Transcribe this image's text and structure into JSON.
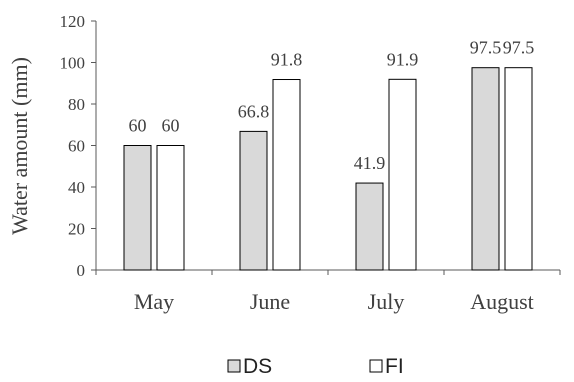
{
  "chart_data": {
    "type": "bar",
    "title": "",
    "xlabel": "",
    "ylabel": "Water amount (mm)",
    "ylim": [
      0,
      120
    ],
    "yticks": [
      0,
      20,
      40,
      60,
      80,
      100,
      120
    ],
    "grid": false,
    "legend_position": "bottom",
    "categories": [
      "May",
      "June",
      "July",
      "August"
    ],
    "series": [
      {
        "name": "DS",
        "values": [
          60,
          66.8,
          41.9,
          97.5
        ],
        "color": "#d9d9d9"
      },
      {
        "name": "FI",
        "values": [
          60,
          91.8,
          91.9,
          97.5
        ],
        "color": "#ffffff"
      }
    ],
    "data_labels": [
      [
        "60",
        "66.8",
        "41.9",
        "97.5"
      ],
      [
        "60",
        "91.8",
        "91.9",
        "97.5"
      ]
    ],
    "colors": {
      "axis": "#595959",
      "bar_stroke": "#000000",
      "text": "#404040"
    }
  }
}
